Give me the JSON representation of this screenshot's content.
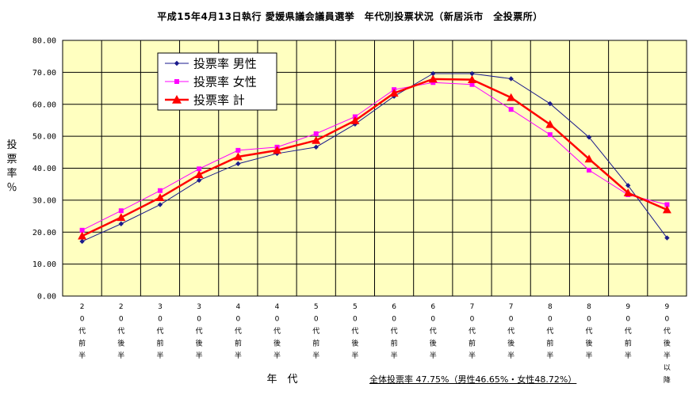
{
  "chart_data": {
    "type": "line",
    "title": "平成15年4月13日執行 愛媛県議会議員選挙　年代別投票状況（新居浜市　全投票所）",
    "xlabel": "年　代",
    "ylabel": "投票率％",
    "ylim": [
      0,
      80
    ],
    "yticks": [
      "0.00",
      "10.00",
      "20.00",
      "30.00",
      "40.00",
      "50.00",
      "60.00",
      "70.00",
      "80.00"
    ],
    "categories": [
      "20代前半",
      "20代後半",
      "30代前半",
      "30代後半",
      "40代前半",
      "40代後半",
      "50代前半",
      "50代後半",
      "60代前半",
      "60代後半",
      "70代前半",
      "70代後半",
      "80代前半",
      "80代後半",
      "90代前半",
      "90代後半以降"
    ],
    "series": [
      {
        "name": "投票率 男性",
        "color": "#1a1a8c",
        "marker": "diamond",
        "values": [
          17.1,
          22.6,
          28.6,
          36.2,
          41.4,
          44.6,
          46.6,
          53.8,
          62.5,
          69.6,
          69.6,
          68.0,
          60.2,
          49.7,
          34.6,
          18.2
        ]
      },
      {
        "name": "投票率 女性",
        "color": "#ff00ff",
        "marker": "square",
        "values": [
          20.6,
          26.7,
          33.0,
          39.8,
          45.6,
          46.6,
          50.8,
          56.1,
          64.6,
          66.8,
          66.2,
          58.4,
          50.5,
          39.4,
          31.7,
          28.6
        ]
      },
      {
        "name": "投票率 計",
        "color": "#ff0000",
        "marker": "triangle",
        "values": [
          18.8,
          24.6,
          30.8,
          38.0,
          43.6,
          45.6,
          48.7,
          54.9,
          63.5,
          67.9,
          67.7,
          62.1,
          53.7,
          42.9,
          32.3,
          27.0
        ]
      }
    ],
    "note": "全体投票率 47.75%（男性46.65%・女性48.72%）",
    "grid": true,
    "legend_position": "top-left",
    "plot_background": "#ffffc0"
  }
}
